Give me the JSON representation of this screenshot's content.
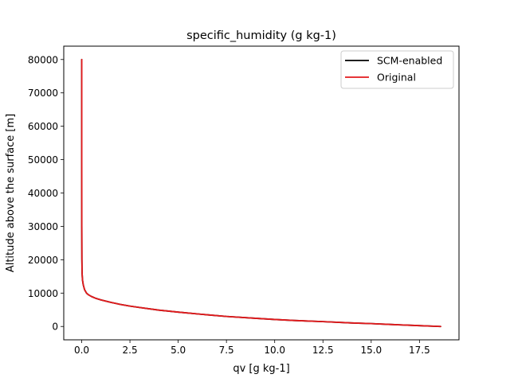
{
  "chart_data": {
    "type": "line",
    "title": "specific_humidity (g kg-1)",
    "xlabel": "qv [g kg-1]",
    "ylabel": "Altitude above the surface [m]",
    "xlim": [
      -0.93,
      19.55
    ],
    "ylim": [
      -4000,
      84000
    ],
    "xticks": [
      0.0,
      2.5,
      5.0,
      7.5,
      10.0,
      12.5,
      15.0,
      17.5
    ],
    "xtick_labels": [
      "0.0",
      "2.5",
      "5.0",
      "7.5",
      "10.0",
      "12.5",
      "15.0",
      "17.5"
    ],
    "yticks": [
      0,
      10000,
      20000,
      30000,
      40000,
      50000,
      60000,
      70000,
      80000
    ],
    "ytick_labels": [
      "0",
      "10000",
      "20000",
      "30000",
      "40000",
      "50000",
      "60000",
      "70000",
      "80000"
    ],
    "grid": false,
    "legend_position": "upper right",
    "series": [
      {
        "name": "SCM-enabled",
        "color": "#000000",
        "points": [
          [
            18.6,
            0
          ],
          [
            17.5,
            250
          ],
          [
            16.0,
            600
          ],
          [
            15.0,
            850
          ],
          [
            14.0,
            1050
          ],
          [
            12.5,
            1450
          ],
          [
            11.0,
            1800
          ],
          [
            10.0,
            2100
          ],
          [
            9.0,
            2450
          ],
          [
            7.5,
            3000
          ],
          [
            6.5,
            3500
          ],
          [
            5.0,
            4300
          ],
          [
            4.0,
            4900
          ],
          [
            3.0,
            5700
          ],
          [
            2.5,
            6100
          ],
          [
            2.0,
            6600
          ],
          [
            1.5,
            7250
          ],
          [
            1.0,
            7950
          ],
          [
            0.7,
            8500
          ],
          [
            0.5,
            9000
          ],
          [
            0.35,
            9500
          ],
          [
            0.25,
            10000
          ],
          [
            0.15,
            11000
          ],
          [
            0.08,
            12500
          ],
          [
            0.04,
            14000
          ],
          [
            0.02,
            16000
          ],
          [
            0.01,
            20000
          ],
          [
            0.005,
            30000
          ],
          [
            0.003,
            50000
          ],
          [
            0.003,
            80000
          ]
        ]
      },
      {
        "name": "Original",
        "color": "#e31a1c",
        "points": [
          [
            18.6,
            0
          ],
          [
            17.5,
            250
          ],
          [
            16.0,
            600
          ],
          [
            15.0,
            850
          ],
          [
            14.0,
            1050
          ],
          [
            12.5,
            1450
          ],
          [
            11.0,
            1800
          ],
          [
            10.0,
            2100
          ],
          [
            9.0,
            2450
          ],
          [
            7.5,
            3000
          ],
          [
            6.5,
            3500
          ],
          [
            5.0,
            4300
          ],
          [
            4.0,
            4900
          ],
          [
            3.0,
            5700
          ],
          [
            2.5,
            6100
          ],
          [
            2.0,
            6600
          ],
          [
            1.5,
            7250
          ],
          [
            1.0,
            7950
          ],
          [
            0.7,
            8500
          ],
          [
            0.5,
            9000
          ],
          [
            0.35,
            9500
          ],
          [
            0.25,
            10000
          ],
          [
            0.15,
            11000
          ],
          [
            0.08,
            12500
          ],
          [
            0.04,
            14000
          ],
          [
            0.02,
            16000
          ],
          [
            0.01,
            20000
          ],
          [
            0.005,
            30000
          ],
          [
            0.003,
            50000
          ],
          [
            0.003,
            80000
          ]
        ]
      }
    ]
  }
}
